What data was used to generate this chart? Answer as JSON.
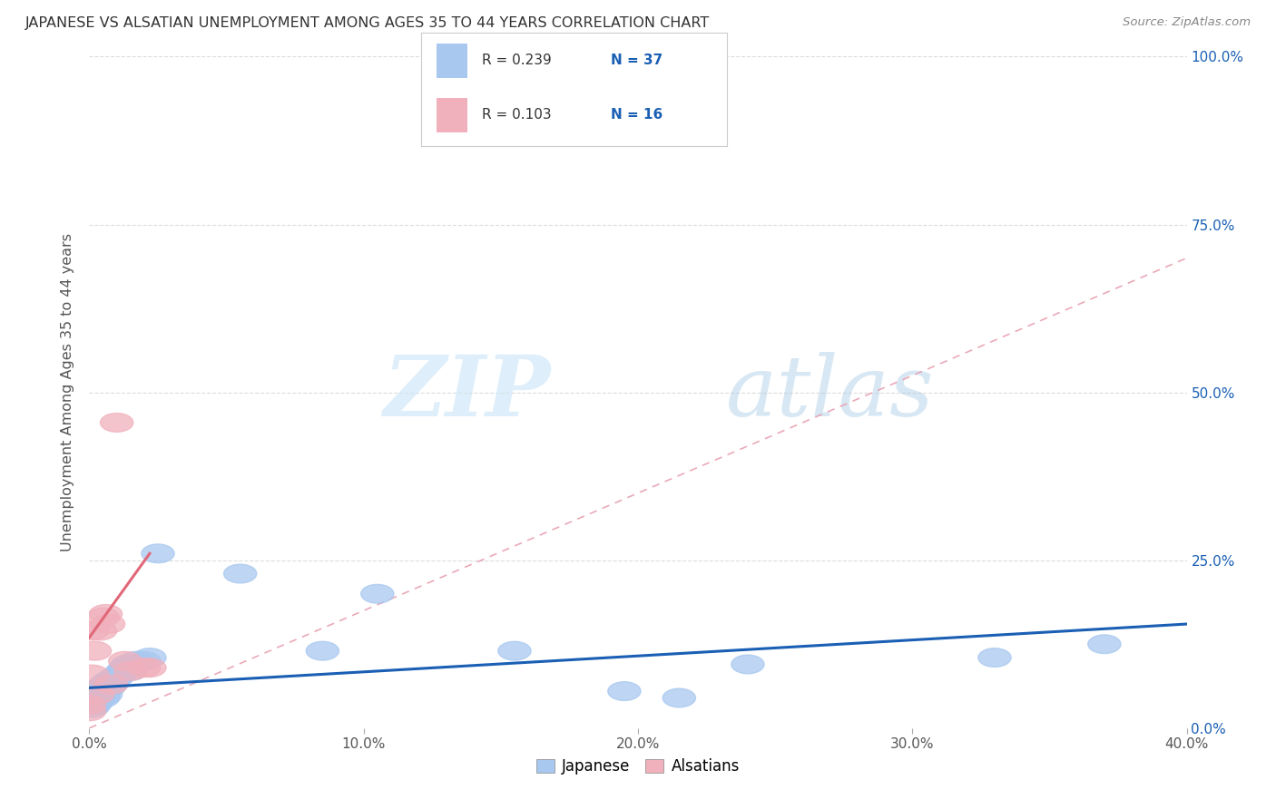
{
  "title": "JAPANESE VS ALSATIAN UNEMPLOYMENT AMONG AGES 35 TO 44 YEARS CORRELATION CHART",
  "source": "Source: ZipAtlas.com",
  "ylabel": "Unemployment Among Ages 35 to 44 years",
  "xlim": [
    0.0,
    0.4
  ],
  "ylim": [
    0.0,
    1.0
  ],
  "xtick_labels": [
    "0.0%",
    "10.0%",
    "20.0%",
    "30.0%",
    "40.0%"
  ],
  "xtick_vals": [
    0.0,
    0.1,
    0.2,
    0.3,
    0.4
  ],
  "ytick_labels_right": [
    "100.0%",
    "75.0%",
    "50.0%",
    "25.0%",
    "0.0%"
  ],
  "ytick_vals": [
    1.0,
    0.75,
    0.5,
    0.25,
    0.0
  ],
  "background_color": "#ffffff",
  "grid_color": "#cccccc",
  "watermark_zip": "ZIP",
  "watermark_atlas": "atlas",
  "japanese_color": "#a8c8f0",
  "alsatian_color": "#f0b0bc",
  "japanese_line_color": "#1a5fb4",
  "alsatian_line_color": "#e06878",
  "trendline_dash_color": "#e8a0b0",
  "legend_R_japanese": "R = 0.239",
  "legend_N_japanese": "N = 37",
  "legend_R_alsatian": "R = 0.103",
  "legend_N_alsatian": "N = 16",
  "japanese_x": [
    0.0,
    0.001,
    0.001,
    0.002,
    0.002,
    0.003,
    0.003,
    0.004,
    0.004,
    0.005,
    0.005,
    0.006,
    0.006,
    0.007,
    0.007,
    0.008,
    0.009,
    0.01,
    0.011,
    0.012,
    0.013,
    0.014,
    0.015,
    0.016,
    0.017,
    0.02,
    0.022,
    0.025,
    0.055,
    0.085,
    0.105,
    0.155,
    0.195,
    0.215,
    0.24,
    0.33,
    0.37
  ],
  "japanese_y": [
    0.035,
    0.04,
    0.03,
    0.045,
    0.035,
    0.05,
    0.04,
    0.05,
    0.06,
    0.045,
    0.055,
    0.065,
    0.05,
    0.06,
    0.07,
    0.065,
    0.075,
    0.075,
    0.08,
    0.085,
    0.09,
    0.095,
    0.085,
    0.095,
    0.1,
    0.1,
    0.105,
    0.26,
    0.23,
    0.115,
    0.2,
    0.115,
    0.055,
    0.045,
    0.095,
    0.105,
    0.125
  ],
  "alsatian_x": [
    0.0,
    0.0,
    0.001,
    0.001,
    0.002,
    0.003,
    0.004,
    0.005,
    0.006,
    0.007,
    0.008,
    0.01,
    0.013,
    0.015,
    0.02,
    0.022
  ],
  "alsatian_y": [
    0.035,
    0.025,
    0.145,
    0.08,
    0.115,
    0.05,
    0.145,
    0.165,
    0.17,
    0.155,
    0.065,
    0.455,
    0.1,
    0.085,
    0.09,
    0.09
  ],
  "japanese_trend_x": [
    0.0,
    0.4
  ],
  "japanese_trend_y": [
    0.06,
    0.155
  ],
  "alsatian_trend_x": [
    0.0,
    0.022
  ],
  "alsatian_trend_y": [
    0.135,
    0.26
  ],
  "dashed_trend_x": [
    0.0,
    0.4
  ],
  "dashed_trend_y": [
    0.0,
    0.7
  ],
  "text_color_blue": "#1a5fb4",
  "text_color_dark": "#333333",
  "text_color_source": "#888888"
}
